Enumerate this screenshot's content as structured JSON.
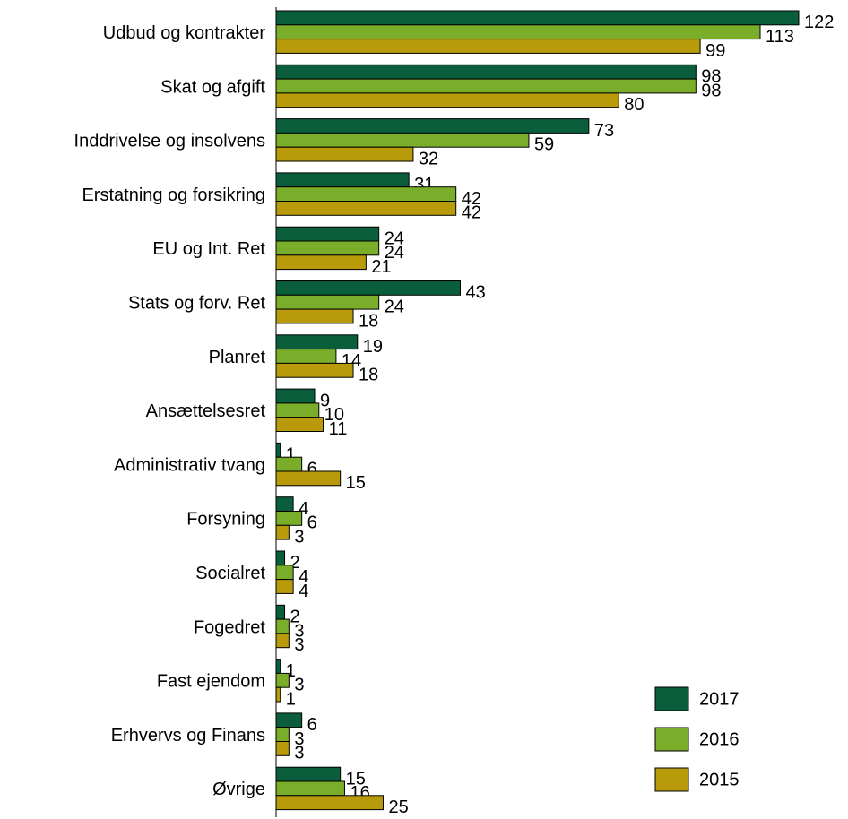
{
  "chart_data": {
    "type": "bar",
    "orientation": "horizontal",
    "categories": [
      "Udbud og kontrakter",
      "Skat og afgift",
      "Inddrivelse og insolvens",
      "Erstatning og forsikring",
      "EU og Int. Ret",
      "Stats og forv. Ret",
      "Planret",
      "Ansættelsesret",
      "Administrativ tvang",
      "Forsyning",
      "Socialret",
      "Fogedret",
      "Fast ejendom",
      "Erhvervs og Finans",
      "Øvrige"
    ],
    "series": [
      {
        "name": "2017",
        "color": "#0b5e3b",
        "values": [
          122,
          98,
          73,
          31,
          24,
          43,
          19,
          9,
          1,
          4,
          2,
          2,
          1,
          6,
          15
        ]
      },
      {
        "name": "2016",
        "color": "#7aad2a",
        "values": [
          113,
          98,
          59,
          42,
          24,
          24,
          14,
          10,
          6,
          6,
          4,
          3,
          3,
          3,
          16
        ]
      },
      {
        "name": "2015",
        "color": "#b89a0a",
        "values": [
          99,
          80,
          32,
          42,
          21,
          18,
          18,
          11,
          15,
          3,
          4,
          3,
          1,
          3,
          25
        ]
      }
    ],
    "legend": "bottom-right"
  }
}
